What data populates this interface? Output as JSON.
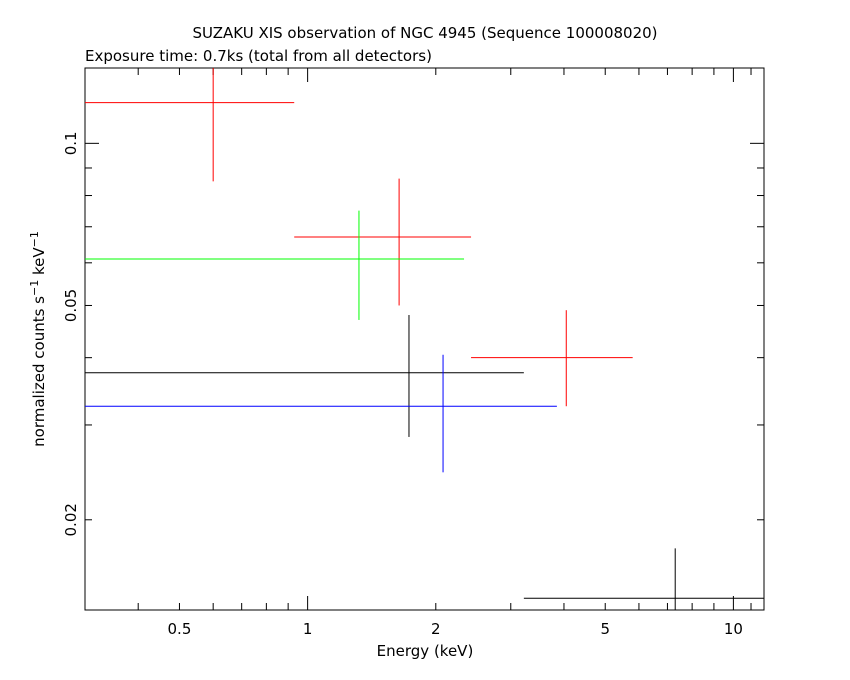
{
  "chart_data": {
    "type": "scatter",
    "title": "SUZAKU XIS observation of NGC 4945 (Sequence 100008020)",
    "subtitle": "Exposure time: 0.7ks (total from all detectors)",
    "xlabel": "Energy (keV)",
    "ylabel_parts": {
      "a": "normalized counts s",
      "a_sup": "−1",
      "b": " keV",
      "b_sup": "−1"
    },
    "xscale": "log",
    "yscale": "log",
    "xlim": [
      0.3,
      11.8
    ],
    "ylim": [
      0.0136,
      0.138
    ],
    "x_tick_labels": [
      {
        "value": 0.5,
        "label": "0.5"
      },
      {
        "value": 1,
        "label": "1"
      },
      {
        "value": 2,
        "label": "2"
      },
      {
        "value": 5,
        "label": "5"
      },
      {
        "value": 10,
        "label": "10"
      }
    ],
    "y_tick_labels": [
      {
        "value": 0.1,
        "label": "0.1"
      },
      {
        "value": 0.05,
        "label": "0.05"
      },
      {
        "value": 0.02,
        "label": "0.02"
      }
    ],
    "series": [
      {
        "color": "#000000",
        "points": [
          {
            "xlo": 0.3,
            "xhi": 3.22,
            "x": 1.73,
            "y": 0.0375,
            "ylo": 0.0285,
            "yhi": 0.048
          },
          {
            "xlo": 3.22,
            "xhi": 11.8,
            "x": 7.3,
            "y": 0.0143,
            "ylo": 0.0136,
            "yhi": 0.0177
          }
        ]
      },
      {
        "color": "#ff0000",
        "points": [
          {
            "xlo": 0.3,
            "xhi": 0.93,
            "x": 0.6,
            "y": 0.119,
            "ylo": 0.085,
            "yhi": 0.138
          },
          {
            "xlo": 0.93,
            "xhi": 2.42,
            "x": 1.64,
            "y": 0.067,
            "ylo": 0.05,
            "yhi": 0.086
          },
          {
            "xlo": 2.42,
            "xhi": 5.8,
            "x": 4.05,
            "y": 0.04,
            "ylo": 0.0325,
            "yhi": 0.049
          }
        ]
      },
      {
        "color": "#00ff00",
        "points": [
          {
            "xlo": 0.3,
            "xhi": 2.33,
            "x": 1.32,
            "y": 0.061,
            "ylo": 0.047,
            "yhi": 0.075
          }
        ]
      },
      {
        "color": "#0000ff",
        "points": [
          {
            "xlo": 0.3,
            "xhi": 3.85,
            "x": 2.08,
            "y": 0.0325,
            "ylo": 0.0245,
            "yhi": 0.0405
          }
        ]
      }
    ]
  }
}
